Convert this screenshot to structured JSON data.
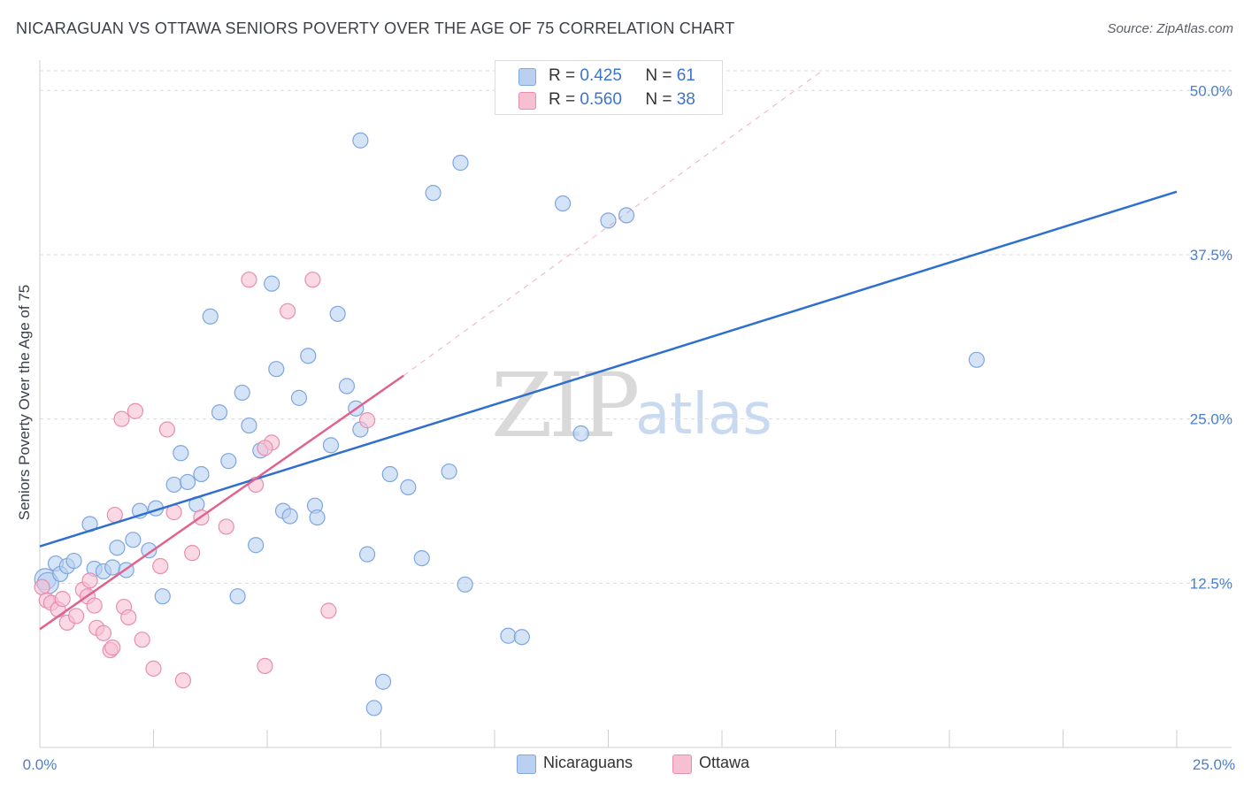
{
  "title": "NICARAGUAN VS OTTAWA SENIORS POVERTY OVER THE AGE OF 75 CORRELATION CHART",
  "source": "Source: ZipAtlas.com",
  "watermark": {
    "zip": "ZIP",
    "atlas": "atlas"
  },
  "legend": {
    "rows": [
      {
        "r_label": "R =",
        "r_value": "0.425",
        "n_label": "N =",
        "n_value": "61"
      },
      {
        "r_label": "R =",
        "r_value": "0.560",
        "n_label": "N =",
        "n_value": "38"
      }
    ]
  },
  "colors": {
    "blue_fill": "#b9d0f1",
    "blue_stroke": "#7ea6e0",
    "blue_line": "#2f6fce",
    "pink_fill": "#f7bfd2",
    "pink_stroke": "#e98db0",
    "pink_line": "#e0628f",
    "grid": "#dcdcdc",
    "tick_text": "#4a7fd0"
  },
  "chart_data": {
    "type": "scatter",
    "title": "NICARAGUAN VS OTTAWA SENIORS POVERTY OVER THE AGE OF 75 CORRELATION CHART",
    "xlabel": "",
    "ylabel": "Seniors Poverty Over the Age of 75",
    "xlim": [
      0,
      25
    ],
    "ylim": [
      0,
      51.5
    ],
    "x_tick_labels": [
      "0.0%",
      "25.0%"
    ],
    "y_ticks": [
      12.5,
      25.0,
      37.5,
      50.0
    ],
    "y_tick_labels": [
      "12.5%",
      "25.0%",
      "37.5%",
      "50.0%"
    ],
    "grid": true,
    "legend_position": "bottom",
    "series": [
      {
        "name": "Nicaraguans",
        "r": 0.425,
        "n": 61,
        "trend": {
          "x0": 0,
          "y0": 15.3,
          "x1": 25,
          "y1": 42.3
        },
        "points": [
          [
            0.12,
            12.8
          ],
          [
            0.18,
            12.5
          ],
          [
            0.35,
            14.0
          ],
          [
            0.45,
            13.2
          ],
          [
            0.6,
            13.8
          ],
          [
            0.75,
            14.2
          ],
          [
            1.1,
            17.0
          ],
          [
            1.2,
            13.6
          ],
          [
            1.4,
            13.4
          ],
          [
            1.6,
            13.7
          ],
          [
            1.7,
            15.2
          ],
          [
            1.9,
            13.5
          ],
          [
            2.05,
            15.8
          ],
          [
            2.2,
            18.0
          ],
          [
            2.4,
            15.0
          ],
          [
            2.55,
            18.2
          ],
          [
            2.7,
            11.5
          ],
          [
            2.95,
            20.0
          ],
          [
            3.1,
            22.4
          ],
          [
            3.25,
            20.2
          ],
          [
            3.45,
            18.5
          ],
          [
            3.55,
            20.8
          ],
          [
            3.75,
            32.8
          ],
          [
            3.95,
            25.5
          ],
          [
            4.15,
            21.8
          ],
          [
            4.35,
            11.5
          ],
          [
            4.45,
            27.0
          ],
          [
            4.6,
            24.5
          ],
          [
            4.75,
            15.4
          ],
          [
            4.85,
            22.6
          ],
          [
            5.1,
            35.3
          ],
          [
            5.2,
            28.8
          ],
          [
            5.35,
            18.0
          ],
          [
            5.5,
            17.6
          ],
          [
            5.7,
            26.6
          ],
          [
            5.9,
            29.8
          ],
          [
            6.05,
            18.4
          ],
          [
            6.1,
            17.5
          ],
          [
            6.4,
            23.0
          ],
          [
            6.55,
            33.0
          ],
          [
            6.75,
            27.5
          ],
          [
            6.95,
            25.8
          ],
          [
            7.05,
            46.2
          ],
          [
            7.05,
            24.2
          ],
          [
            7.2,
            14.7
          ],
          [
            7.55,
            5.0
          ],
          [
            7.35,
            3.0
          ],
          [
            7.7,
            20.8
          ],
          [
            8.1,
            19.8
          ],
          [
            8.4,
            14.4
          ],
          [
            8.65,
            42.2
          ],
          [
            9.0,
            21.0
          ],
          [
            9.25,
            44.5
          ],
          [
            9.35,
            12.4
          ],
          [
            10.3,
            8.5
          ],
          [
            10.6,
            8.4
          ],
          [
            11.5,
            41.4
          ],
          [
            11.9,
            23.9
          ],
          [
            12.5,
            40.1
          ],
          [
            12.9,
            40.5
          ],
          [
            20.6,
            29.5
          ]
        ]
      },
      {
        "name": "Ottawa",
        "r": 0.56,
        "n": 38,
        "trend": {
          "x0": 0,
          "y0": 9.0,
          "x1": 8.0,
          "y1": 28.3
        },
        "trend_ext": {
          "x0": 8.0,
          "y0": 28.3,
          "x1": 17.2,
          "y1": 51.5
        },
        "points": [
          [
            0.05,
            12.2
          ],
          [
            0.15,
            11.2
          ],
          [
            0.25,
            11.0
          ],
          [
            0.4,
            10.5
          ],
          [
            0.5,
            11.3
          ],
          [
            0.6,
            9.5
          ],
          [
            0.8,
            10.0
          ],
          [
            0.95,
            12.0
          ],
          [
            1.05,
            11.5
          ],
          [
            1.1,
            12.7
          ],
          [
            1.2,
            10.8
          ],
          [
            1.25,
            9.1
          ],
          [
            1.4,
            8.7
          ],
          [
            1.55,
            7.4
          ],
          [
            1.6,
            7.6
          ],
          [
            1.65,
            17.7
          ],
          [
            1.8,
            25.0
          ],
          [
            1.85,
            10.7
          ],
          [
            1.95,
            9.9
          ],
          [
            2.1,
            25.6
          ],
          [
            2.25,
            8.2
          ],
          [
            2.5,
            6.0
          ],
          [
            2.65,
            13.8
          ],
          [
            2.8,
            24.2
          ],
          [
            2.95,
            17.9
          ],
          [
            3.15,
            5.1
          ],
          [
            3.35,
            14.8
          ],
          [
            3.55,
            17.5
          ],
          [
            4.1,
            16.8
          ],
          [
            4.6,
            35.6
          ],
          [
            4.75,
            20.0
          ],
          [
            4.95,
            6.2
          ],
          [
            5.1,
            23.2
          ],
          [
            5.45,
            33.2
          ],
          [
            6.0,
            35.6
          ],
          [
            6.35,
            10.4
          ],
          [
            7.2,
            24.9
          ],
          [
            4.95,
            22.8
          ]
        ]
      }
    ]
  }
}
